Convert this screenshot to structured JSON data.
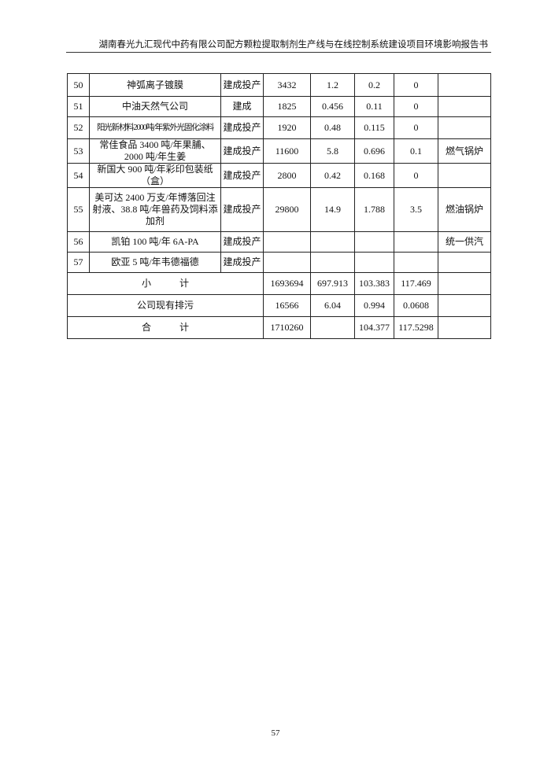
{
  "header": {
    "title": "湖南春光九汇现代中药有限公司配方颗粒提取制剂生产线与在线控制系统建设项目环境影响报告书"
  },
  "table": {
    "rows": [
      [
        "50",
        "神弧离子镀膜",
        "建成投产",
        "3432",
        "1.2",
        "0.2",
        "0",
        null
      ],
      [
        "51",
        "中油天然气公司",
        "建成",
        "1825",
        "0.456",
        "0.11",
        "0",
        null
      ],
      [
        "52",
        "阳光新材料2000吨/年紫外光固化涂料",
        "建成投产",
        "1920",
        "0.48",
        "0.115",
        "0",
        null
      ],
      [
        "53",
        "常佳食品 3400 吨/年果脯、2000 吨/年生姜",
        "建成投产",
        "11600",
        "5.8",
        "0.696",
        "0.1",
        "燃气锅炉"
      ],
      [
        "54",
        "新国大 900 吨/年彩印包装纸（盒）",
        "建成投产",
        "2800",
        "0.42",
        "0.168",
        "0",
        null
      ],
      [
        "55",
        "美可达 2400 万支/年博落回注射液、38.8 吨/年兽药及饲料添加剂",
        "建成投产",
        "29800",
        "14.9",
        "1.788",
        "3.5",
        "燃油锅炉"
      ],
      [
        "56",
        "凯铂 100 吨/年 6A-PA",
        "建成投产",
        null,
        null,
        null,
        null,
        "统一供汽"
      ],
      [
        "57",
        "欧亚 5 吨/年韦德福德",
        "建成投产",
        null,
        null,
        null,
        null,
        null
      ]
    ],
    "summary": [
      [
        "小　　　计",
        "1693694",
        "697.913",
        "103.383",
        "117.469",
        null
      ],
      [
        "公司现有排污",
        "16566",
        "6.04",
        "0.994",
        "0.0608",
        null
      ],
      [
        "合　　　计",
        "1710260",
        null,
        "104.377",
        "117.5298",
        null
      ]
    ]
  },
  "footer": {
    "page": "57"
  }
}
